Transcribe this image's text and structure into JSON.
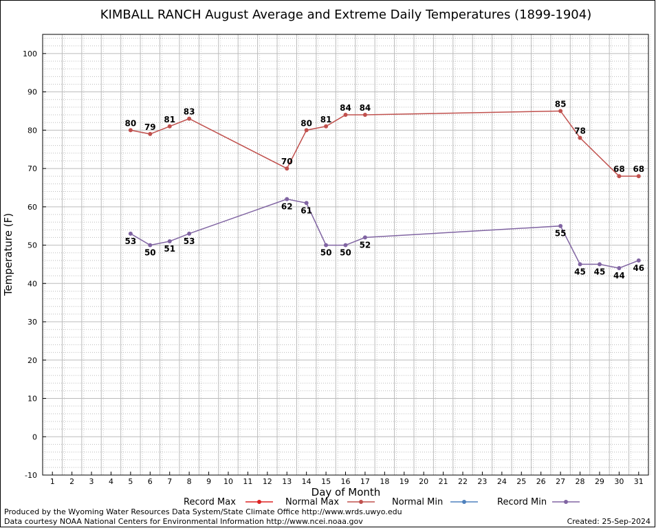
{
  "chart_data": {
    "type": "line",
    "title": "KIMBALL RANCH August Average and Extreme Daily Temperatures (1899-1904)",
    "xlabel": "Day of Month",
    "ylabel": "Temperature (F)",
    "xlim": [
      0.5,
      31.5
    ],
    "ylim": [
      -10,
      105
    ],
    "x_ticks": [
      1,
      2,
      3,
      4,
      5,
      6,
      7,
      8,
      9,
      10,
      11,
      12,
      13,
      14,
      15,
      16,
      17,
      18,
      19,
      20,
      21,
      22,
      23,
      24,
      25,
      26,
      27,
      28,
      29,
      30,
      31
    ],
    "y_ticks": [
      -10,
      0,
      10,
      20,
      30,
      40,
      50,
      60,
      70,
      80,
      90,
      100
    ],
    "grid": true,
    "legend_position": "bottom",
    "series": [
      {
        "name": "Record Max",
        "color": "#dd2222",
        "x": [],
        "values": []
      },
      {
        "name": "Normal Max",
        "color": "#c0504d",
        "x": [
          5,
          6,
          7,
          8,
          13,
          14,
          15,
          16,
          17,
          27,
          28,
          30,
          31
        ],
        "values": [
          80,
          79,
          81,
          83,
          70,
          80,
          81,
          84,
          84,
          85,
          78,
          68,
          68
        ],
        "label_position": "above"
      },
      {
        "name": "Normal Min",
        "color": "#4f81bd",
        "x": [],
        "values": []
      },
      {
        "name": "Record Min",
        "color": "#8064a2",
        "x": [
          5,
          6,
          7,
          8,
          13,
          14,
          15,
          16,
          17,
          27,
          28,
          29,
          30,
          31
        ],
        "values": [
          53,
          50,
          51,
          53,
          62,
          61,
          50,
          50,
          52,
          55,
          45,
          45,
          44,
          46
        ],
        "label_position": "below"
      }
    ]
  },
  "footer": {
    "produced_by": "Produced by the Wyoming Water Resources Data System/State Climate Office http://www.wrds.uwyo.edu",
    "data_courtesy": "Data courtesy NOAA National Centers for Environmental Information http://www.ncei.noaa.gov",
    "created": "Created:  25-Sep-2024"
  }
}
